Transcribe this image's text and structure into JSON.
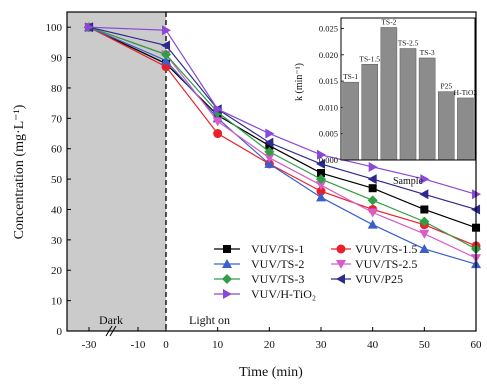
{
  "chart_data": [
    {
      "type": "line",
      "xlabel": "Time (min)",
      "ylabel": "Concentration (mg·L⁻¹)",
      "x": [
        -30,
        -10,
        0,
        10,
        20,
        30,
        40,
        50,
        60
      ],
      "x_tick_labels": [
        "-30",
        "-10",
        "0",
        "10",
        "20",
        "30",
        "40",
        "50",
        "60"
      ],
      "ylim": [
        0,
        105
      ],
      "y_ticks": [
        0,
        10,
        20,
        30,
        40,
        50,
        60,
        70,
        80,
        90,
        100
      ],
      "annotations": {
        "dark": "Dark",
        "light": "Light on"
      },
      "series": [
        {
          "name": "VUV/TS-1",
          "color": "#000000",
          "marker": "square",
          "values": [
            100,
            null,
            88,
            71,
            61,
            52,
            47,
            40,
            34
          ]
        },
        {
          "name": "VUV/TS-1.5",
          "color": "#e8202a",
          "marker": "circle",
          "values": [
            100,
            null,
            87,
            65,
            55,
            46,
            40,
            35,
            28
          ]
        },
        {
          "name": "VUV/TS-2",
          "color": "#3a5fcd",
          "marker": "triangle-up",
          "values": [
            100,
            null,
            89,
            70,
            55,
            44,
            35,
            27,
            22
          ]
        },
        {
          "name": "VUV/TS-2.5",
          "color": "#d85cc9",
          "marker": "triangle-down",
          "values": [
            100,
            null,
            91,
            69,
            57,
            48,
            39,
            32,
            24
          ]
        },
        {
          "name": "VUV/TS-3",
          "color": "#2f9e44",
          "marker": "diamond",
          "values": [
            100,
            null,
            91,
            72,
            59,
            50,
            43,
            36,
            27
          ]
        },
        {
          "name": "VUV/P25",
          "color": "#2e2a8c",
          "marker": "triangle-left",
          "values": [
            100,
            null,
            94,
            73,
            62,
            55,
            50,
            45,
            40
          ]
        },
        {
          "name": "VUV/H-TiO₂",
          "color": "#8a48d6",
          "marker": "triangle-right",
          "values": [
            100,
            null,
            99,
            73,
            65,
            58,
            54,
            50,
            45
          ]
        }
      ]
    },
    {
      "type": "bar",
      "xlabel": "Sample",
      "ylabel": "k (min⁻¹)",
      "ylim": [
        0,
        0.027
      ],
      "y_ticks": [
        "0.000",
        "0.005",
        "0.010",
        "0.015",
        "0.020",
        "0.025"
      ],
      "categories": [
        "TS-1",
        "TS-1.5",
        "TS-2",
        "TS-2.5",
        "TS-3",
        "P25",
        "H-TiO2"
      ],
      "values": [
        0.0148,
        0.0182,
        0.0252,
        0.0212,
        0.0194,
        0.013,
        0.0118
      ],
      "bar_color": "#8c8c8c"
    }
  ]
}
